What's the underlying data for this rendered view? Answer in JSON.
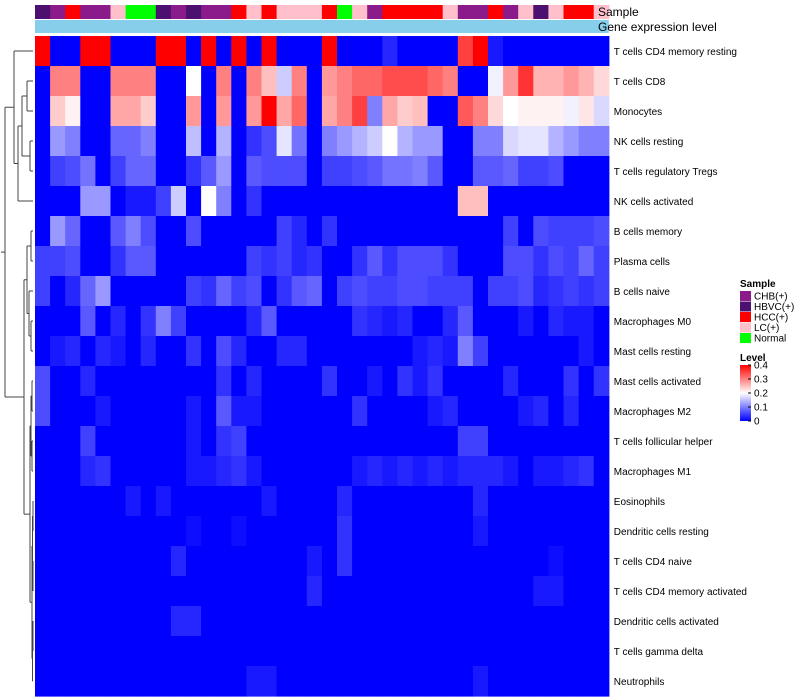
{
  "chart_data": {
    "type": "heatmap",
    "annotations": {
      "sample_label": "Sample",
      "expression_label": "Gene expression level",
      "sample_columns": [
        "HBVC(+)",
        "CHB(+)",
        "HCC(+)",
        "CHB(+)",
        "CHB(+)",
        "LC(+)",
        "Normal",
        "Normal",
        "HBVC(+)",
        "CHB(+)",
        "HBVC(+)",
        "CHB(+)",
        "CHB(+)",
        "HCC(+)",
        "LC(+)",
        "HCC(+)",
        "LC(+)",
        "LC(+)",
        "LC(+)",
        "HCC(+)",
        "Normal",
        "LC(+)",
        "CHB(+)",
        "HCC(+)",
        "HCC(+)",
        "HCC(+)",
        "HCC(+)",
        "LC(+)",
        "CHB(+)",
        "CHB(+)",
        "HCC(+)",
        "CHB(+)",
        "LC(+)",
        "HBVC(+)",
        "LC(+)",
        "HCC(+)",
        "HCC(+)",
        "LC(+)"
      ]
    },
    "rows": [
      "T cells CD4 memory resting",
      "T cells CD8",
      "Monocytes",
      "NK cells resting",
      "T cells regulatory  Tregs",
      "NK cells activated",
      "B cells memory",
      "Plasma cells",
      "B cells naive",
      "Macrophages M0",
      "Mast cells resting",
      "Mast cells activated",
      "Macrophages M2",
      "T cells follicular helper",
      "Macrophages M1",
      "Eosinophils",
      "Dendritic cells resting",
      "T cells CD4 naive",
      "T cells CD4 memory activated",
      "Dendritic cells activated",
      "T cells gamma delta",
      "Neutrophils"
    ],
    "values": [
      [
        0.4,
        0.0,
        0.0,
        0.4,
        0.4,
        0.0,
        0.0,
        0.0,
        0.4,
        0.4,
        0.0,
        0.4,
        0.0,
        0.4,
        0.0,
        0.4,
        0.0,
        0.0,
        0.0,
        0.4,
        0.0,
        0.0,
        0.0,
        0.03,
        0.0,
        0.0,
        0.0,
        0.0,
        0.35,
        0.4,
        0.02,
        0.0,
        0.0,
        0.0,
        0.0,
        0.0,
        0.0,
        0.0
      ],
      [
        0.0,
        0.3,
        0.3,
        0.0,
        0.0,
        0.3,
        0.3,
        0.3,
        0.0,
        0.0,
        0.2,
        0.0,
        0.3,
        0.0,
        0.3,
        0.25,
        0.16,
        0.3,
        0.0,
        0.28,
        0.3,
        0.32,
        0.32,
        0.34,
        0.34,
        0.34,
        0.32,
        0.3,
        0.0,
        0.0,
        0.19,
        0.28,
        0.36,
        0.26,
        0.26,
        0.28,
        0.26,
        0.23
      ],
      [
        0.0,
        0.24,
        0.21,
        0.0,
        0.0,
        0.27,
        0.27,
        0.24,
        0.0,
        0.0,
        0.28,
        0.0,
        0.28,
        0.0,
        0.28,
        0.4,
        0.27,
        0.32,
        0.0,
        0.27,
        0.3,
        0.35,
        0.1,
        0.27,
        0.24,
        0.25,
        0.0,
        0.0,
        0.33,
        0.3,
        0.23,
        0.2,
        0.21,
        0.21,
        0.21,
        0.19,
        0.22,
        0.17
      ],
      [
        0.0,
        0.12,
        0.1,
        0.0,
        0.0,
        0.08,
        0.08,
        0.1,
        0.0,
        0.0,
        0.15,
        0.0,
        0.14,
        0.0,
        0.04,
        0.06,
        0.18,
        0.09,
        0.0,
        0.1,
        0.12,
        0.14,
        0.16,
        0.2,
        0.14,
        0.12,
        0.12,
        0.0,
        0.0,
        0.1,
        0.1,
        0.17,
        0.18,
        0.18,
        0.14,
        0.12,
        0.1,
        0.1
      ],
      [
        0.0,
        0.05,
        0.06,
        0.09,
        0.0,
        0.05,
        0.08,
        0.08,
        0.0,
        0.0,
        0.04,
        0.07,
        0.12,
        0.0,
        0.07,
        0.06,
        0.06,
        0.06,
        0.0,
        0.05,
        0.05,
        0.06,
        0.07,
        0.09,
        0.09,
        0.1,
        0.07,
        0.0,
        0.0,
        0.07,
        0.07,
        0.08,
        0.05,
        0.05,
        0.06,
        0.0,
        0.0,
        0.0
      ],
      [
        0.0,
        0.0,
        0.0,
        0.12,
        0.12,
        0.0,
        0.02,
        0.02,
        0.05,
        0.16,
        0.0,
        0.2,
        0.1,
        0.0,
        0.04,
        0.0,
        0.0,
        0.0,
        0.0,
        0.0,
        0.0,
        0.0,
        0.0,
        0.0,
        0.0,
        0.0,
        0.0,
        0.0,
        0.25,
        0.25,
        0.0,
        0.0,
        0.0,
        0.0,
        0.0,
        0.0,
        0.0,
        0.0
      ],
      [
        0.0,
        0.12,
        0.08,
        0.0,
        0.0,
        0.07,
        0.1,
        0.06,
        0.0,
        0.0,
        0.06,
        0.0,
        0.0,
        0.0,
        0.0,
        0.0,
        0.05,
        0.03,
        0.0,
        0.04,
        0.0,
        0.0,
        0.0,
        0.0,
        0.0,
        0.0,
        0.0,
        0.0,
        0.0,
        0.0,
        0.0,
        0.05,
        0.0,
        0.06,
        0.05,
        0.05,
        0.05,
        0.06
      ],
      [
        0.05,
        0.05,
        0.06,
        0.0,
        0.0,
        0.04,
        0.07,
        0.07,
        0.0,
        0.0,
        0.0,
        0.0,
        0.0,
        0.0,
        0.05,
        0.04,
        0.05,
        0.03,
        0.04,
        0.0,
        0.0,
        0.04,
        0.07,
        0.04,
        0.06,
        0.06,
        0.06,
        0.04,
        0.0,
        0.0,
        0.0,
        0.06,
        0.06,
        0.04,
        0.06,
        0.05,
        0.08,
        0.05
      ],
      [
        0.05,
        0.0,
        0.03,
        0.08,
        0.12,
        0.0,
        0.0,
        0.0,
        0.0,
        0.0,
        0.05,
        0.04,
        0.08,
        0.05,
        0.06,
        0.0,
        0.04,
        0.07,
        0.08,
        0.0,
        0.05,
        0.06,
        0.05,
        0.05,
        0.06,
        0.06,
        0.05,
        0.05,
        0.05,
        0.0,
        0.05,
        0.05,
        0.06,
        0.03,
        0.04,
        0.05,
        0.04,
        0.05
      ],
      [
        0.0,
        0.0,
        0.0,
        0.07,
        0.0,
        0.03,
        0.0,
        0.04,
        0.1,
        0.05,
        0.0,
        0.0,
        0.0,
        0.0,
        0.03,
        0.07,
        0.0,
        0.0,
        0.0,
        0.0,
        0.0,
        0.04,
        0.03,
        0.02,
        0.03,
        0.0,
        0.0,
        0.03,
        0.07,
        0.0,
        0.0,
        0.0,
        0.02,
        0.0,
        0.03,
        0.02,
        0.02,
        0.0
      ],
      [
        0.0,
        0.02,
        0.03,
        0.0,
        0.03,
        0.02,
        0.0,
        0.03,
        0.0,
        0.0,
        0.04,
        0.0,
        0.06,
        0.03,
        0.0,
        0.0,
        0.03,
        0.03,
        0.0,
        0.0,
        0.0,
        0.0,
        0.0,
        0.0,
        0.0,
        0.02,
        0.03,
        0.02,
        0.1,
        0.05,
        0.0,
        0.0,
        0.0,
        0.0,
        0.0,
        0.0,
        0.02,
        0.0
      ],
      [
        0.06,
        0.0,
        0.0,
        0.03,
        0.0,
        0.0,
        0.0,
        0.0,
        0.0,
        0.0,
        0.0,
        0.0,
        0.04,
        0.0,
        0.03,
        0.0,
        0.0,
        0.0,
        0.0,
        0.04,
        0.0,
        0.0,
        0.02,
        0.0,
        0.04,
        0.02,
        0.04,
        0.0,
        0.0,
        0.0,
        0.0,
        0.03,
        0.0,
        0.0,
        0.0,
        0.04,
        0.0,
        0.04
      ],
      [
        0.06,
        0.0,
        0.0,
        0.0,
        0.02,
        0.0,
        0.0,
        0.0,
        0.0,
        0.0,
        0.02,
        0.0,
        0.07,
        0.02,
        0.02,
        0.0,
        0.0,
        0.0,
        0.0,
        0.0,
        0.0,
        0.04,
        0.0,
        0.0,
        0.0,
        0.0,
        0.02,
        0.03,
        0.0,
        0.0,
        0.0,
        0.0,
        0.02,
        0.03,
        0.0,
        0.03,
        0.0,
        0.0
      ],
      [
        0.0,
        0.0,
        0.0,
        0.05,
        0.0,
        0.0,
        0.0,
        0.0,
        0.0,
        0.0,
        0.02,
        0.0,
        0.04,
        0.05,
        0.0,
        0.0,
        0.0,
        0.0,
        0.0,
        0.0,
        0.0,
        0.0,
        0.0,
        0.0,
        0.0,
        0.0,
        0.0,
        0.0,
        0.05,
        0.05,
        0.0,
        0.0,
        0.0,
        0.0,
        0.0,
        0.0,
        0.0,
        0.0
      ],
      [
        0.0,
        0.0,
        0.0,
        0.03,
        0.04,
        0.0,
        0.0,
        0.0,
        0.0,
        0.0,
        0.02,
        0.02,
        0.03,
        0.04,
        0.02,
        0.0,
        0.0,
        0.0,
        0.0,
        0.0,
        0.0,
        0.02,
        0.03,
        0.02,
        0.03,
        0.02,
        0.03,
        0.02,
        0.03,
        0.03,
        0.03,
        0.02,
        0.0,
        0.02,
        0.02,
        0.03,
        0.04,
        0.0
      ],
      [
        0.0,
        0.0,
        0.0,
        0.0,
        0.0,
        0.0,
        0.02,
        0.0,
        0.02,
        0.0,
        0.0,
        0.0,
        0.0,
        0.0,
        0.0,
        0.02,
        0.0,
        0.0,
        0.0,
        0.0,
        0.03,
        0.0,
        0.0,
        0.0,
        0.0,
        0.0,
        0.0,
        0.0,
        0.0,
        0.03,
        0.0,
        0.0,
        0.0,
        0.0,
        0.0,
        0.0,
        0.0,
        0.0
      ],
      [
        0.0,
        0.0,
        0.0,
        0.0,
        0.0,
        0.0,
        0.0,
        0.0,
        0.0,
        0.0,
        0.01,
        0.0,
        0.0,
        0.01,
        0.0,
        0.0,
        0.0,
        0.0,
        0.0,
        0.0,
        0.04,
        0.0,
        0.0,
        0.0,
        0.0,
        0.0,
        0.0,
        0.0,
        0.0,
        0.02,
        0.0,
        0.0,
        0.0,
        0.0,
        0.0,
        0.0,
        0.0,
        0.0
      ],
      [
        0.0,
        0.0,
        0.0,
        0.0,
        0.0,
        0.0,
        0.0,
        0.0,
        0.0,
        0.03,
        0.0,
        0.0,
        0.0,
        0.0,
        0.0,
        0.0,
        0.0,
        0.0,
        0.02,
        0.0,
        0.04,
        0.0,
        0.0,
        0.0,
        0.0,
        0.0,
        0.0,
        0.0,
        0.0,
        0.0,
        0.0,
        0.0,
        0.0,
        0.0,
        0.01,
        0.0,
        0.0,
        0.0
      ],
      [
        0.0,
        0.0,
        0.0,
        0.0,
        0.0,
        0.0,
        0.0,
        0.0,
        0.0,
        0.0,
        0.0,
        0.0,
        0.0,
        0.0,
        0.0,
        0.0,
        0.0,
        0.0,
        0.03,
        0.0,
        0.0,
        0.0,
        0.0,
        0.0,
        0.0,
        0.0,
        0.0,
        0.0,
        0.0,
        0.0,
        0.0,
        0.0,
        0.0,
        0.02,
        0.02,
        0.0,
        0.0,
        0.0
      ],
      [
        0.0,
        0.0,
        0.0,
        0.0,
        0.0,
        0.0,
        0.0,
        0.0,
        0.0,
        0.03,
        0.03,
        0.0,
        0.0,
        0.0,
        0.0,
        0.0,
        0.0,
        0.0,
        0.0,
        0.0,
        0.0,
        0.0,
        0.0,
        0.0,
        0.0,
        0.0,
        0.0,
        0.0,
        0.0,
        0.0,
        0.0,
        0.0,
        0.0,
        0.0,
        0.0,
        0.0,
        0.0,
        0.0
      ],
      [
        0.0,
        0.0,
        0.0,
        0.0,
        0.0,
        0.0,
        0.0,
        0.0,
        0.0,
        0.0,
        0.0,
        0.0,
        0.0,
        0.0,
        0.0,
        0.0,
        0.0,
        0.0,
        0.0,
        0.0,
        0.0,
        0.0,
        0.0,
        0.0,
        0.0,
        0.0,
        0.0,
        0.0,
        0.0,
        0.0,
        0.0,
        0.0,
        0.0,
        0.0,
        0.0,
        0.0,
        0.0,
        0.0
      ],
      [
        0.0,
        0.0,
        0.0,
        0.0,
        0.0,
        0.0,
        0.0,
        0.0,
        0.0,
        0.0,
        0.0,
        0.0,
        0.0,
        0.0,
        0.02,
        0.02,
        0.0,
        0.0,
        0.0,
        0.0,
        0.0,
        0.0,
        0.0,
        0.0,
        0.0,
        0.0,
        0.0,
        0.0,
        0.0,
        0.02,
        0.0,
        0.0,
        0.0,
        0.0,
        0.0,
        0.0,
        0.0,
        0.0
      ]
    ],
    "legend": {
      "sample_title": "Sample",
      "sample_groups": [
        {
          "label": "CHB(+)",
          "color": "#8b1a8b"
        },
        {
          "label": "HBVC(+)",
          "color": "#4b1070"
        },
        {
          "label": "HCC(+)",
          "color": "#ff0000"
        },
        {
          "label": "LC(+)",
          "color": "#ffc0cb"
        },
        {
          "label": "Normal",
          "color": "#00ff00"
        }
      ],
      "level_title": "Level",
      "level_ticks": [
        0.4,
        0.3,
        0.2,
        0.1,
        0
      ],
      "range": [
        0,
        0.4
      ]
    },
    "colors": {
      "low": "#0000ff",
      "mid": "#ffffff",
      "high": "#ff0000",
      "expression_bar": "#87ceeb"
    }
  }
}
